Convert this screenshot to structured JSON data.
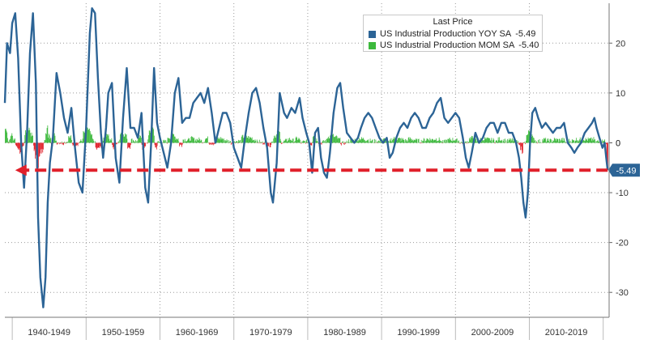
{
  "chart_data": {
    "type": "line",
    "title": "",
    "xlabel": "",
    "ylabel": "",
    "x_range": [
      1939.0,
      2020.8
    ],
    "ylim": [
      -35,
      28
    ],
    "y_ticks": [
      20,
      10,
      0,
      -10,
      -20,
      -30
    ],
    "grid": true,
    "legend_position": "top-right",
    "legend_title": "Last Price",
    "decade_labels": [
      "1940-1949",
      "1950-1959",
      "1960-1969",
      "1970-1979",
      "1980-1989",
      "1990-1999",
      "2000-2009",
      "2010-2019"
    ],
    "decade_starts": [
      1940,
      1950,
      1960,
      1970,
      1980,
      1990,
      2000,
      2010
    ],
    "series": [
      {
        "name": "US Industrial Production YOY SA",
        "last_value": "-5.49",
        "color": "#2c6496",
        "points": [
          [
            1939.0,
            8
          ],
          [
            1939.3,
            20
          ],
          [
            1939.7,
            18
          ],
          [
            1940.0,
            24
          ],
          [
            1940.4,
            26
          ],
          [
            1940.8,
            17
          ],
          [
            1941.2,
            0
          ],
          [
            1941.6,
            -9
          ],
          [
            1942.0,
            2
          ],
          [
            1942.4,
            18
          ],
          [
            1942.8,
            26
          ],
          [
            1943.2,
            12
          ],
          [
            1943.5,
            -15
          ],
          [
            1943.8,
            -27
          ],
          [
            1944.0,
            -30
          ],
          [
            1944.2,
            -33
          ],
          [
            1944.5,
            -27
          ],
          [
            1944.8,
            -12
          ],
          [
            1945.1,
            -4
          ],
          [
            1945.5,
            1
          ],
          [
            1946.0,
            14
          ],
          [
            1946.5,
            10
          ],
          [
            1947.0,
            5
          ],
          [
            1947.5,
            2
          ],
          [
            1948.0,
            7
          ],
          [
            1948.5,
            -1
          ],
          [
            1949.0,
            -8
          ],
          [
            1949.5,
            -10
          ],
          [
            1950.0,
            3
          ],
          [
            1950.5,
            22
          ],
          [
            1950.8,
            27
          ],
          [
            1951.2,
            26
          ],
          [
            1951.6,
            13
          ],
          [
            1952.0,
            2
          ],
          [
            1952.3,
            -3
          ],
          [
            1952.7,
            3
          ],
          [
            1953.0,
            10
          ],
          [
            1953.5,
            12
          ],
          [
            1954.0,
            -3
          ],
          [
            1954.5,
            -8
          ],
          [
            1955.0,
            5
          ],
          [
            1955.5,
            15
          ],
          [
            1956.0,
            3
          ],
          [
            1956.5,
            3
          ],
          [
            1957.0,
            1
          ],
          [
            1957.5,
            6
          ],
          [
            1958.0,
            -9
          ],
          [
            1958.4,
            -12
          ],
          [
            1958.8,
            0
          ],
          [
            1959.2,
            15
          ],
          [
            1959.6,
            4
          ],
          [
            1960.0,
            1
          ],
          [
            1960.5,
            -2
          ],
          [
            1961.0,
            -5
          ],
          [
            1961.5,
            0
          ],
          [
            1962.0,
            10
          ],
          [
            1962.5,
            13
          ],
          [
            1963.0,
            4
          ],
          [
            1963.5,
            5
          ],
          [
            1964.0,
            5
          ],
          [
            1964.5,
            8
          ],
          [
            1965.0,
            9
          ],
          [
            1965.5,
            10
          ],
          [
            1966.0,
            8
          ],
          [
            1966.5,
            11
          ],
          [
            1967.0,
            6
          ],
          [
            1967.5,
            0
          ],
          [
            1968.0,
            3
          ],
          [
            1968.5,
            6
          ],
          [
            1969.0,
            6
          ],
          [
            1969.5,
            4
          ],
          [
            1970.0,
            -1
          ],
          [
            1970.5,
            -3
          ],
          [
            1971.0,
            -5
          ],
          [
            1971.5,
            1
          ],
          [
            1972.0,
            6
          ],
          [
            1972.5,
            10
          ],
          [
            1973.0,
            11
          ],
          [
            1973.5,
            8
          ],
          [
            1974.0,
            3
          ],
          [
            1974.5,
            -1
          ],
          [
            1975.0,
            -10
          ],
          [
            1975.3,
            -12
          ],
          [
            1975.8,
            -4
          ],
          [
            1976.2,
            10
          ],
          [
            1976.8,
            6
          ],
          [
            1977.2,
            5
          ],
          [
            1977.8,
            7
          ],
          [
            1978.3,
            6
          ],
          [
            1978.9,
            9
          ],
          [
            1979.3,
            5
          ],
          [
            1979.8,
            2
          ],
          [
            1980.2,
            0
          ],
          [
            1980.6,
            -6
          ],
          [
            1981.0,
            2
          ],
          [
            1981.4,
            3
          ],
          [
            1981.8,
            -3
          ],
          [
            1982.2,
            -6
          ],
          [
            1982.6,
            -7
          ],
          [
            1983.0,
            -2
          ],
          [
            1983.5,
            6
          ],
          [
            1984.0,
            11
          ],
          [
            1984.4,
            12
          ],
          [
            1984.8,
            7
          ],
          [
            1985.3,
            2
          ],
          [
            1985.8,
            1
          ],
          [
            1986.3,
            0
          ],
          [
            1986.8,
            1
          ],
          [
            1987.2,
            3
          ],
          [
            1987.7,
            5
          ],
          [
            1988.2,
            6
          ],
          [
            1988.7,
            5
          ],
          [
            1989.2,
            3
          ],
          [
            1989.7,
            1
          ],
          [
            1990.2,
            0
          ],
          [
            1990.7,
            1
          ],
          [
            1991.1,
            -3
          ],
          [
            1991.5,
            -2
          ],
          [
            1992.0,
            1
          ],
          [
            1992.5,
            3
          ],
          [
            1993.0,
            4
          ],
          [
            1993.5,
            3
          ],
          [
            1994.0,
            5
          ],
          [
            1994.5,
            6
          ],
          [
            1995.0,
            5
          ],
          [
            1995.5,
            3
          ],
          [
            1996.0,
            3
          ],
          [
            1996.5,
            5
          ],
          [
            1997.0,
            6
          ],
          [
            1997.5,
            8
          ],
          [
            1998.0,
            9
          ],
          [
            1998.5,
            5
          ],
          [
            1999.0,
            4
          ],
          [
            1999.5,
            5
          ],
          [
            2000.0,
            6
          ],
          [
            2000.5,
            5
          ],
          [
            2001.0,
            1
          ],
          [
            2001.4,
            -3
          ],
          [
            2001.8,
            -5
          ],
          [
            2002.2,
            -2
          ],
          [
            2002.7,
            2
          ],
          [
            2003.2,
            0
          ],
          [
            2003.7,
            1
          ],
          [
            2004.2,
            3
          ],
          [
            2004.7,
            4
          ],
          [
            2005.2,
            4
          ],
          [
            2005.7,
            2
          ],
          [
            2006.2,
            4
          ],
          [
            2006.7,
            4
          ],
          [
            2007.2,
            2
          ],
          [
            2007.7,
            2
          ],
          [
            2008.2,
            0
          ],
          [
            2008.6,
            -3
          ],
          [
            2008.9,
            -7
          ],
          [
            2009.2,
            -12
          ],
          [
            2009.5,
            -15
          ],
          [
            2009.8,
            -10
          ],
          [
            2010.1,
            0
          ],
          [
            2010.4,
            6
          ],
          [
            2010.8,
            7
          ],
          [
            2011.2,
            5
          ],
          [
            2011.7,
            3
          ],
          [
            2012.2,
            4
          ],
          [
            2012.7,
            3
          ],
          [
            2013.2,
            2
          ],
          [
            2013.7,
            3
          ],
          [
            2014.2,
            3
          ],
          [
            2014.7,
            4
          ],
          [
            2015.2,
            0
          ],
          [
            2015.7,
            -1
          ],
          [
            2016.1,
            -2
          ],
          [
            2016.5,
            -1
          ],
          [
            2017.0,
            0
          ],
          [
            2017.5,
            2
          ],
          [
            2018.0,
            3
          ],
          [
            2018.5,
            4
          ],
          [
            2018.8,
            5
          ],
          [
            2019.1,
            3
          ],
          [
            2019.5,
            1
          ],
          [
            2019.9,
            -1
          ],
          [
            2020.2,
            0
          ],
          [
            2020.4,
            -3
          ],
          [
            2020.6,
            -5.49
          ]
        ]
      },
      {
        "name": "US Industrial Production MOM SA",
        "last_value": "-5.40",
        "color": "#3cb93c",
        "negative_color": "#e0202a"
      }
    ],
    "annotation": {
      "type": "dashed-arrow",
      "y": -5.49,
      "x_from": 2020.6,
      "x_to": 1940.4,
      "color": "#e0202a",
      "label": "-5.49",
      "label_bg": "#2c6496"
    }
  }
}
